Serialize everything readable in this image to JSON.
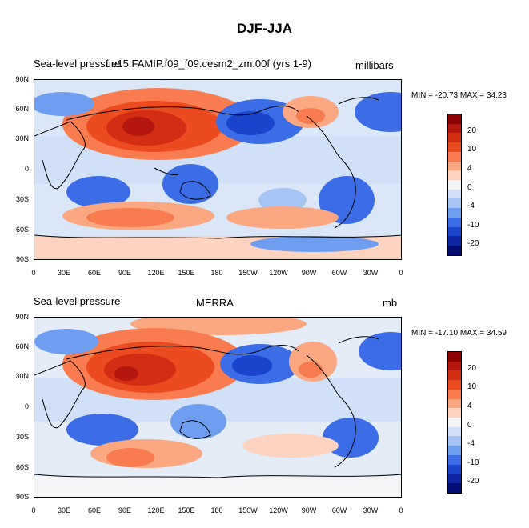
{
  "title": "DJF-JJA",
  "panels": [
    {
      "left_label": "Sea-level pressure",
      "center_label": "f.e15.FAMIP.f09_f09.cesm2_zm.00f (yrs 1-9)",
      "units": "millibars",
      "minmax": "MIN = -20.73 MAX =  34.23"
    },
    {
      "left_label": "Sea-level pressure",
      "center_label": "MERRA",
      "units": "mb",
      "minmax": "MIN = -17.10 MAX =  34.59"
    }
  ],
  "lat_ticks": [
    "90N",
    "60N",
    "30N",
    "0",
    "30S",
    "60S",
    "90S"
  ],
  "lon_ticks": [
    "0",
    "30E",
    "60E",
    "90E",
    "120E",
    "150E",
    "180",
    "150W",
    "120W",
    "90W",
    "60W",
    "30W",
    "0"
  ],
  "colorbar": {
    "labels": [
      "20",
      "10",
      "4",
      "0",
      "-4",
      "-10",
      "-20"
    ],
    "colors": [
      "#8c0000",
      "#b5160f",
      "#d32d14",
      "#ec4a1f",
      "#f87c4f",
      "#fba882",
      "#fdd3bf",
      "#f4f4f7",
      "#cfe0f7",
      "#a5c6f5",
      "#6f9ef0",
      "#3c6de6",
      "#1b43cc",
      "#0d27a5",
      "#020d75"
    ]
  }
}
